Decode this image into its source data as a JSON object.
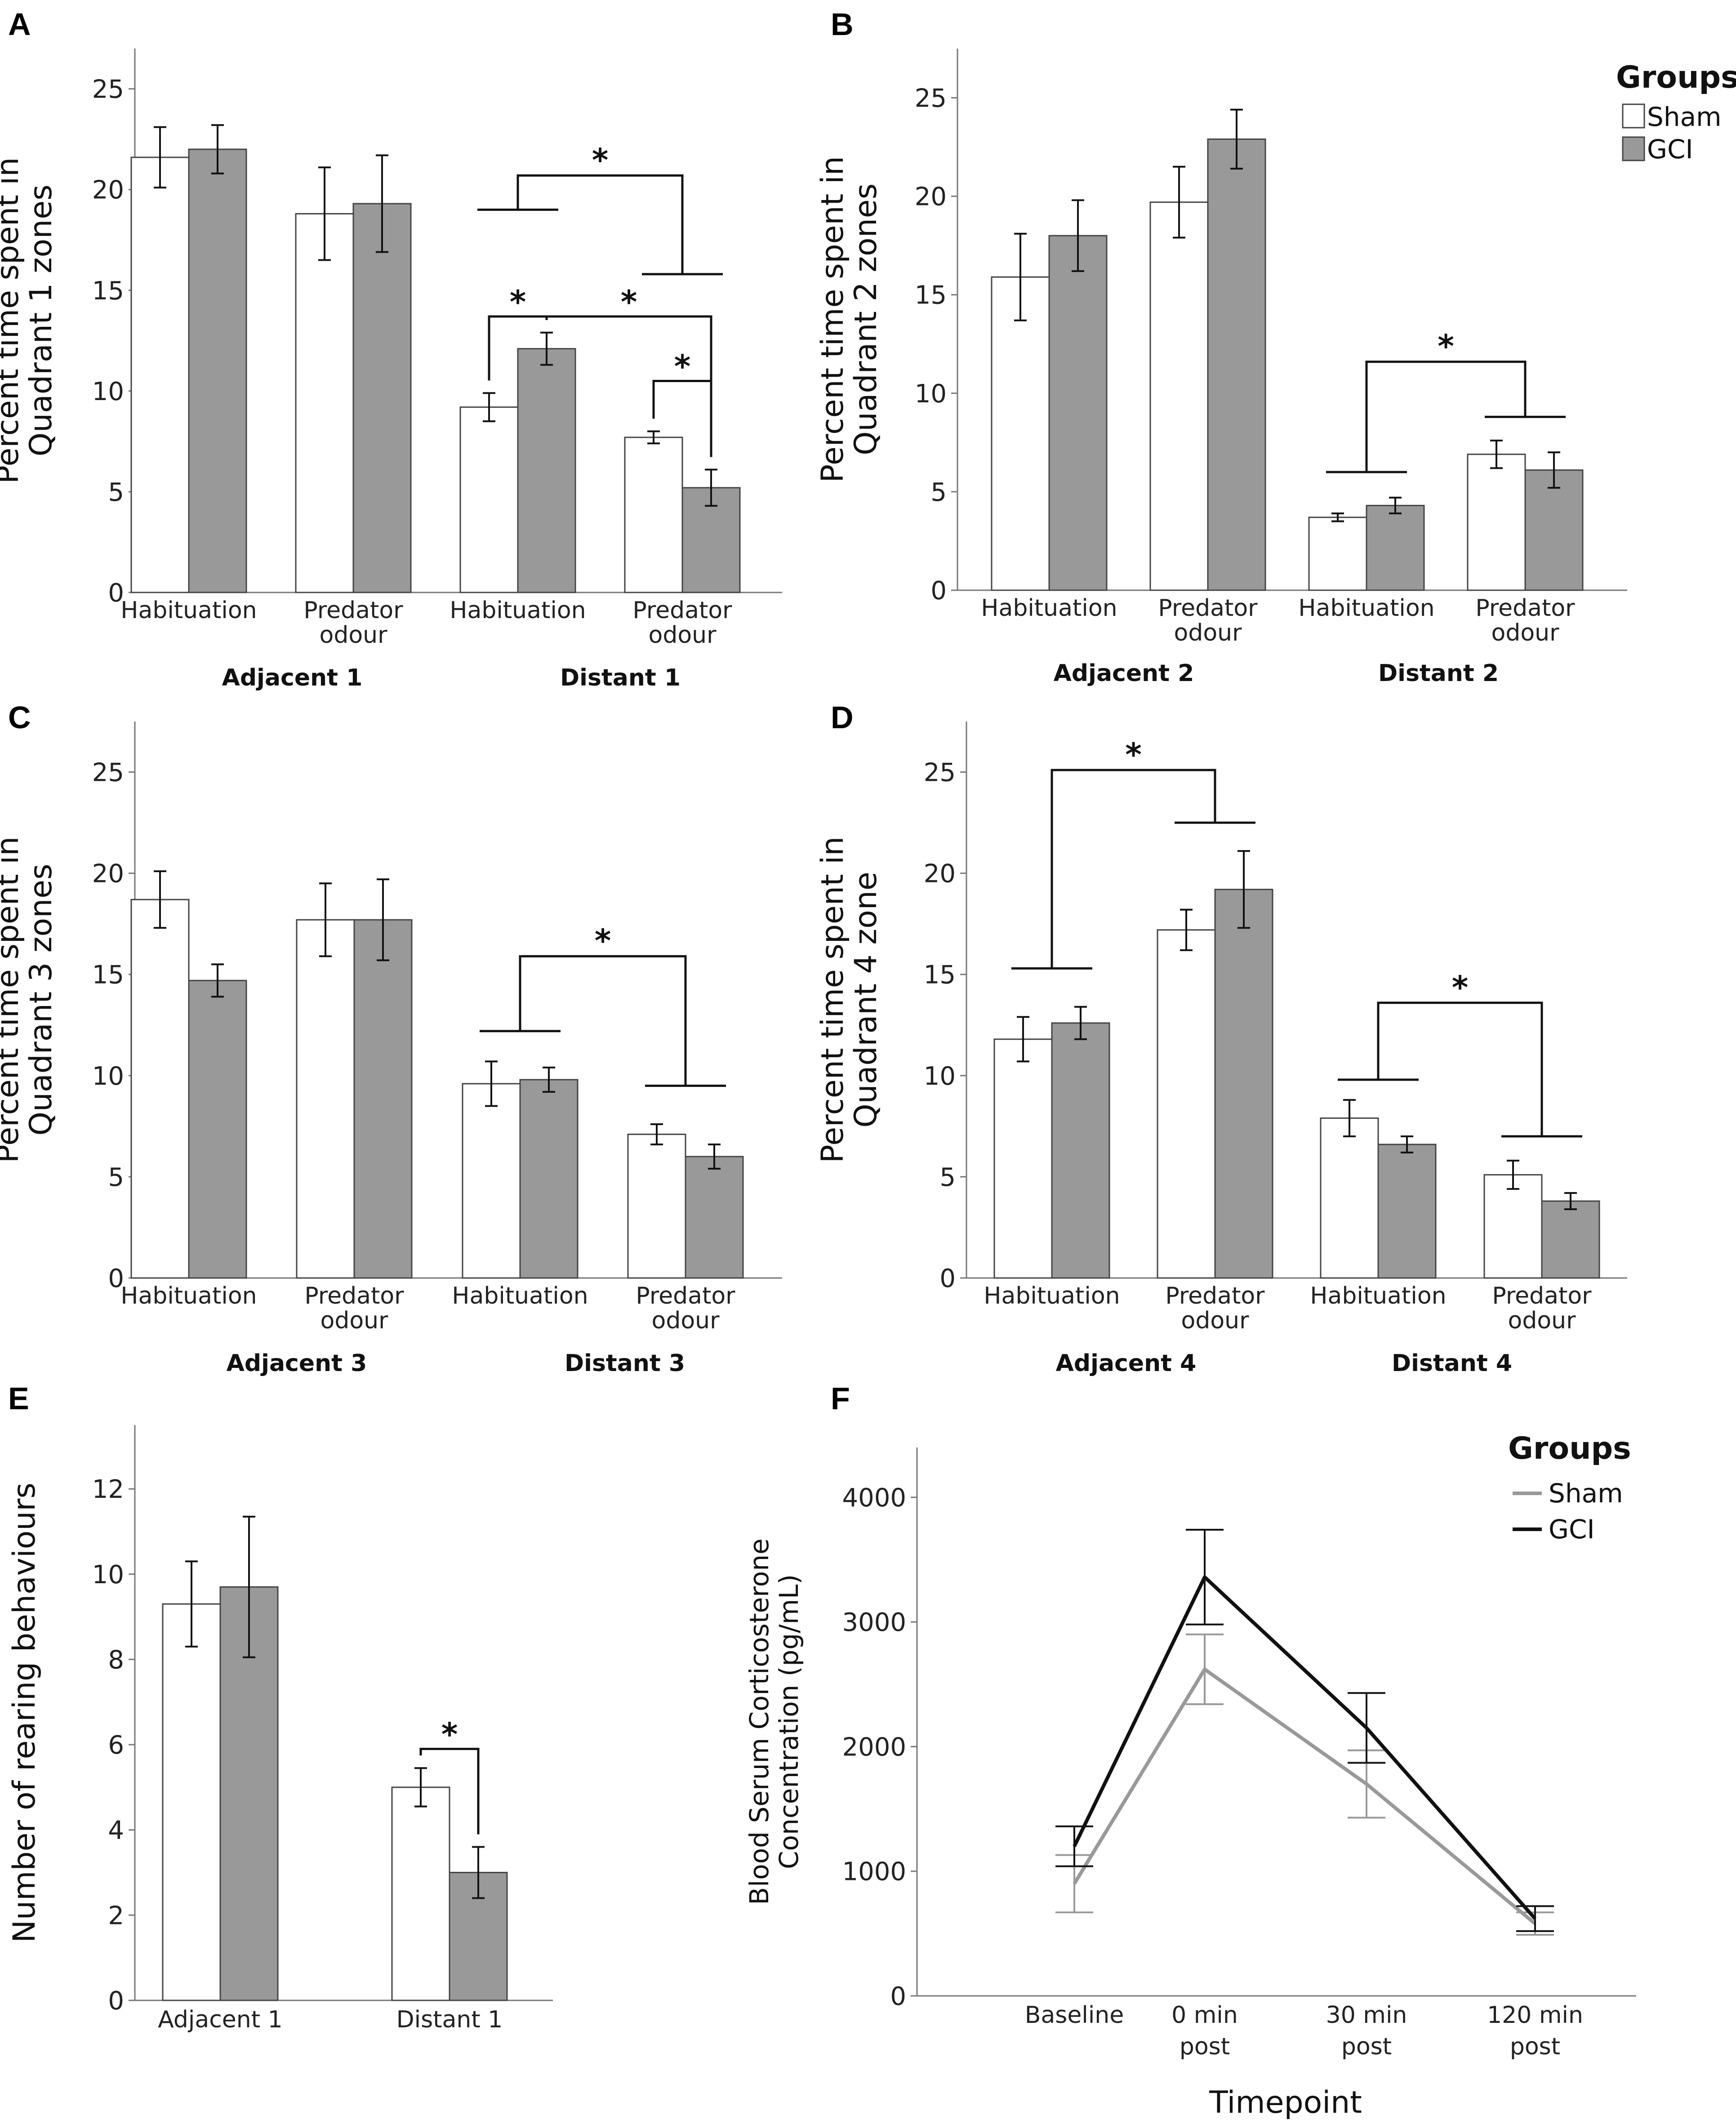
{
  "legend_groups": {
    "title": "Groups",
    "sham": "Sham",
    "gci": "GCI"
  },
  "colors": {
    "sham": "#ffffff",
    "gci": "#999999",
    "bar_stroke": "#444444",
    "line_sham": "#999999",
    "line_gci": "#111111"
  },
  "chart_data": [
    {
      "panel": "A",
      "type": "bar",
      "ylabel": [
        "Percent time spent in",
        "Quadrant 1 zones"
      ],
      "ylim": [
        0,
        27
      ],
      "yticks": [
        0,
        5,
        10,
        15,
        20,
        25
      ],
      "categories": [
        "Habituation",
        "Predator odour",
        "Habituation",
        "Predator odour"
      ],
      "groups": [
        {
          "label": "Adjacent 1",
          "categories": [
            0,
            1
          ]
        },
        {
          "label": "Distant 1",
          "categories": [
            2,
            3
          ]
        }
      ],
      "series": [
        {
          "name": "Sham",
          "values": [
            21.6,
            18.8,
            9.2,
            7.7
          ],
          "err": [
            1.5,
            2.3,
            0.7,
            0.3
          ]
        },
        {
          "name": "GCI",
          "values": [
            22.0,
            19.3,
            12.1,
            5.2
          ],
          "err": [
            1.2,
            2.4,
            0.8,
            0.9
          ]
        }
      ],
      "significance": [
        {
          "label": "*",
          "kind": "pair",
          "from": [
            2,
            0
          ],
          "to": [
            2,
            1
          ],
          "y": 13.7
        },
        {
          "label": "*",
          "kind": "pair",
          "from": [
            3,
            0
          ],
          "to": [
            3,
            1
          ],
          "y": 10.5
        },
        {
          "label": "*",
          "kind": "pair",
          "from": [
            2,
            1
          ],
          "to": [
            3,
            1
          ],
          "y": 13.7
        },
        {
          "label": "*",
          "kind": "group",
          "from": 2,
          "to": 3,
          "y": 20.7,
          "fromLegY": 19.0,
          "toLegY": 15.8
        }
      ]
    },
    {
      "panel": "B",
      "type": "bar",
      "ylabel": [
        "Percent time spent in",
        "Quadrant 2 zones"
      ],
      "ylim": [
        0,
        27.5
      ],
      "yticks": [
        0,
        5,
        10,
        15,
        20,
        25
      ],
      "categories": [
        "Habituation",
        "Predator odour",
        "Habituation",
        "Predator odour"
      ],
      "groups": [
        {
          "label": "Adjacent 2",
          "categories": [
            0,
            1
          ]
        },
        {
          "label": "Distant 2",
          "categories": [
            2,
            3
          ]
        }
      ],
      "series": [
        {
          "name": "Sham",
          "values": [
            15.9,
            19.7,
            3.7,
            6.9
          ],
          "err": [
            2.2,
            1.8,
            0.2,
            0.7
          ]
        },
        {
          "name": "GCI",
          "values": [
            18.0,
            22.9,
            4.3,
            6.1
          ],
          "err": [
            1.8,
            1.5,
            0.4,
            0.9
          ]
        }
      ],
      "significance": [
        {
          "label": "*",
          "kind": "group",
          "from": 2,
          "to": 3,
          "y": 11.6,
          "fromLegY": 6.0,
          "toLegY": 8.8
        }
      ]
    },
    {
      "panel": "C",
      "type": "bar",
      "ylabel": [
        "Percent time spent in",
        "Quadrant 3 zones"
      ],
      "ylim": [
        0,
        27.5
      ],
      "yticks": [
        0,
        5,
        10,
        15,
        20,
        25
      ],
      "categories": [
        "Habituation",
        "Predator odour",
        "Habituation",
        "Predator odour"
      ],
      "groups": [
        {
          "label": "Adjacent 3",
          "categories": [
            0,
            1
          ]
        },
        {
          "label": "Distant 3",
          "categories": [
            2,
            3
          ]
        }
      ],
      "series": [
        {
          "name": "Sham",
          "values": [
            18.7,
            17.7,
            9.6,
            7.1
          ],
          "err": [
            1.4,
            1.8,
            1.1,
            0.5
          ]
        },
        {
          "name": "GCI",
          "values": [
            14.7,
            17.7,
            9.8,
            6.0
          ],
          "err": [
            0.8,
            2.0,
            0.6,
            0.6
          ]
        }
      ],
      "significance": [
        {
          "label": "*",
          "kind": "group",
          "from": 2,
          "to": 3,
          "y": 15.9,
          "fromLegY": 12.2,
          "toLegY": 9.5
        }
      ]
    },
    {
      "panel": "D",
      "type": "bar",
      "ylabel": [
        "Percent time spent in",
        "Quadrant 4 zone"
      ],
      "ylim": [
        0,
        27.5
      ],
      "yticks": [
        0,
        5,
        10,
        15,
        20,
        25
      ],
      "categories": [
        "Habituation",
        "Predator odour",
        "Habituation",
        "Predator odour"
      ],
      "groups": [
        {
          "label": "Adjacent 4",
          "categories": [
            0,
            1
          ]
        },
        {
          "label": "Distant 4",
          "categories": [
            2,
            3
          ]
        }
      ],
      "series": [
        {
          "name": "Sham",
          "values": [
            11.8,
            17.2,
            7.9,
            5.1
          ],
          "err": [
            1.1,
            1.0,
            0.9,
            0.7
          ]
        },
        {
          "name": "GCI",
          "values": [
            12.6,
            19.2,
            6.6,
            3.8
          ],
          "err": [
            0.8,
            1.9,
            0.4,
            0.4
          ]
        }
      ],
      "significance": [
        {
          "label": "*",
          "kind": "group",
          "from": 0,
          "to": 1,
          "y": 25.1,
          "fromLegY": 15.3,
          "toLegY": 22.5
        },
        {
          "label": "*",
          "kind": "group",
          "from": 2,
          "to": 3,
          "y": 13.6,
          "fromLegY": 9.8,
          "toLegY": 7.0
        }
      ]
    },
    {
      "panel": "E",
      "type": "bar",
      "ylabel": [
        "Number of rearing behaviours"
      ],
      "ylim": [
        0,
        13.5
      ],
      "yticks": [
        0,
        2,
        4,
        6,
        8,
        10,
        12
      ],
      "categories": [
        "Adjacent 1",
        "Distant 1"
      ],
      "series": [
        {
          "name": "Sham",
          "values": [
            9.3,
            5.0
          ],
          "err": [
            1.0,
            0.45
          ]
        },
        {
          "name": "GCI",
          "values": [
            9.7,
            3.0
          ],
          "err": [
            1.65,
            0.6
          ]
        }
      ],
      "significance": [
        {
          "label": "*",
          "kind": "pair",
          "from": [
            1,
            0
          ],
          "to": [
            1,
            1
          ],
          "y": 5.9
        }
      ]
    },
    {
      "panel": "F",
      "type": "line",
      "ylabel": [
        "Blood Serum Corticosterone",
        "Concentration (pg/mL)"
      ],
      "xlabel": "Timepoint",
      "ylim": [
        0,
        4400
      ],
      "yticks": [
        0,
        1000,
        2000,
        3000,
        4000
      ],
      "categories": [
        "Baseline",
        "0 min post",
        "30 min post",
        "120 min post"
      ],
      "series": [
        {
          "name": "Sham",
          "values": [
            900,
            2620,
            1700,
            580
          ],
          "err": [
            230,
            280,
            270,
            90
          ]
        },
        {
          "name": "GCI",
          "values": [
            1200,
            3360,
            2150,
            620
          ],
          "err": [
            160,
            380,
            280,
            100
          ]
        }
      ]
    }
  ]
}
